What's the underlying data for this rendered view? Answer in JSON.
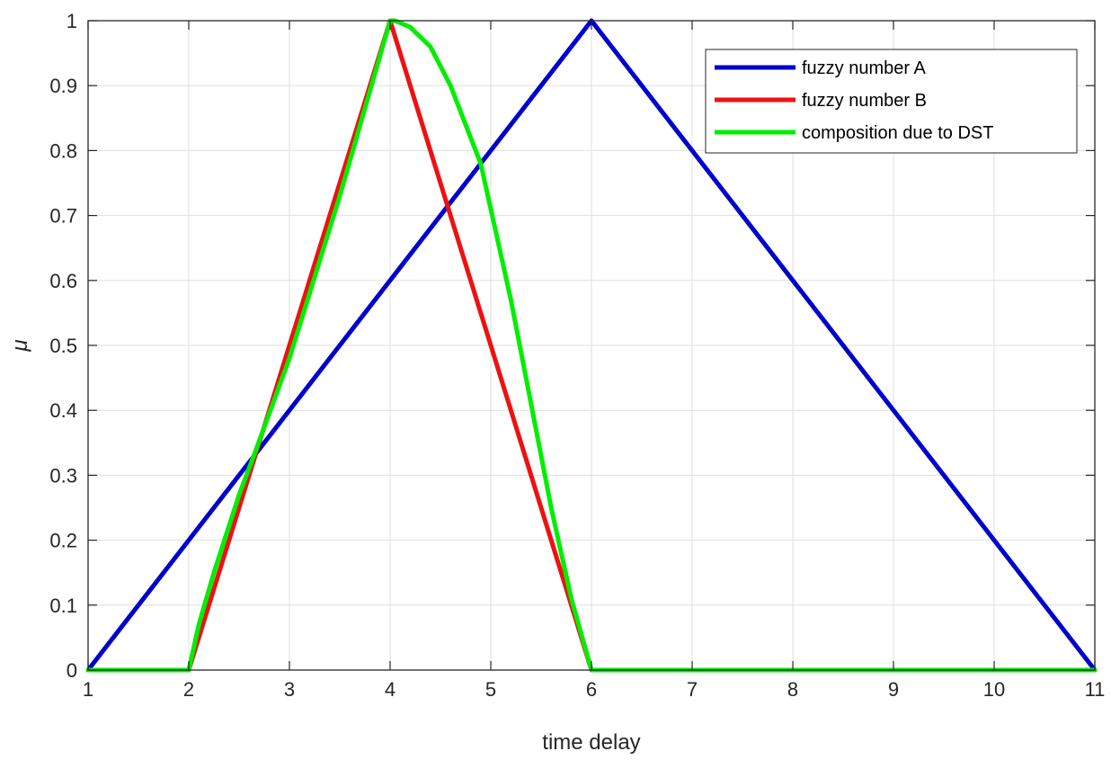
{
  "chart_data": {
    "type": "line",
    "title": "",
    "xlabel": "time delay",
    "ylabel": "μ",
    "xlim": [
      1,
      11
    ],
    "ylim": [
      0,
      1
    ],
    "xticks": [
      1,
      2,
      3,
      4,
      5,
      6,
      7,
      8,
      9,
      10,
      11
    ],
    "yticks": [
      0,
      0.1,
      0.2,
      0.3,
      0.4,
      0.5,
      0.6,
      0.7,
      0.8,
      0.9,
      1
    ],
    "grid": true,
    "legend_position": "top-right",
    "series": [
      {
        "name": "fuzzy number A",
        "color": "#0000cc",
        "x": [
          1,
          6,
          11
        ],
        "y": [
          0,
          1,
          0
        ]
      },
      {
        "name": "fuzzy number B",
        "color": "#ee1111",
        "x": [
          1,
          2,
          4,
          6,
          11
        ],
        "y": [
          0,
          0,
          1,
          0,
          0
        ]
      },
      {
        "name": "composition due to DST",
        "color": "#00ee00",
        "x": [
          1,
          2,
          2.1,
          2.25,
          2.5,
          2.67,
          3,
          3.5,
          4,
          4.05,
          4.2,
          4.4,
          4.6,
          4.8,
          4.9,
          5,
          5.2,
          5.4,
          5.6,
          5.8,
          6,
          11
        ],
        "y": [
          0,
          0,
          0.07,
          0.15,
          0.27,
          0.34,
          0.48,
          0.73,
          1.0,
          1.0,
          0.99,
          0.96,
          0.9,
          0.82,
          0.78,
          0.71,
          0.57,
          0.41,
          0.25,
          0.11,
          0,
          0
        ]
      }
    ]
  }
}
